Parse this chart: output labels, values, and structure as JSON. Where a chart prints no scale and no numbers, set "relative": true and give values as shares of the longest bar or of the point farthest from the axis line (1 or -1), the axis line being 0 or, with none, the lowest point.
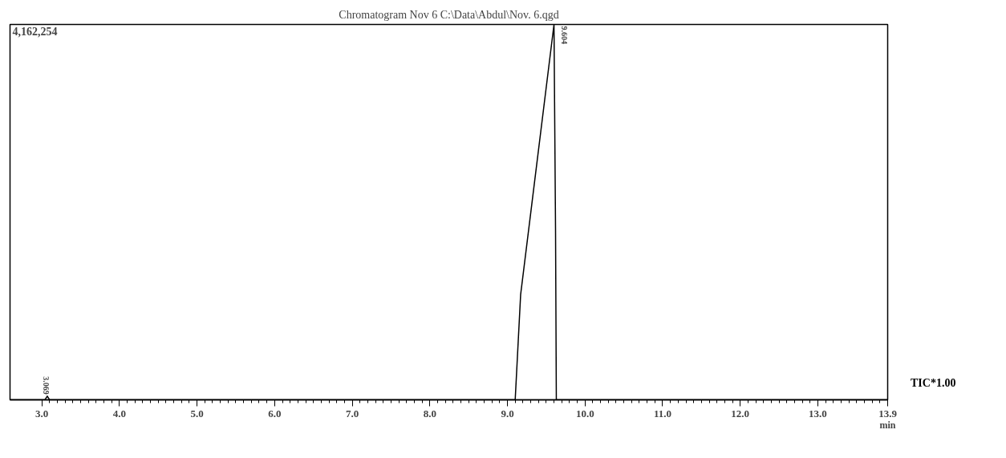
{
  "chart_data": {
    "type": "line",
    "title": "Chromatogram Nov 6 C:\\Data\\Abdul\\Nov. 6.qgd",
    "xlabel": "min",
    "relative": true,
    "color": "#000000",
    "x": [
      2.59,
      3.0,
      3.04,
      3.07,
      3.1,
      9.1,
      9.17,
      9.6,
      9.62,
      9.63,
      13.9
    ],
    "values": [
      0,
      0,
      0,
      0.01,
      0,
      0,
      0.28,
      1.0,
      0.45,
      0,
      0
    ],
    "xlim": [
      2.59,
      13.9
    ],
    "xticks": [
      {
        "value": 3.0,
        "label": "3.0"
      },
      {
        "value": 4.0,
        "label": "4.0"
      },
      {
        "value": 5.0,
        "label": "5.0"
      },
      {
        "value": 6.0,
        "label": "6.0"
      },
      {
        "value": 7.0,
        "label": "7.0"
      },
      {
        "value": 8.0,
        "label": "8.0"
      },
      {
        "value": 9.0,
        "label": "9.0"
      },
      {
        "value": 10.0,
        "label": "10.0"
      },
      {
        "value": 11.0,
        "label": "11.0"
      },
      {
        "value": 12.0,
        "label": "12.0"
      },
      {
        "value": 13.0,
        "label": "13.0"
      },
      13.9
    ],
    "tick_labels": "x",
    "grid": false,
    "annotations": [
      "4,162,254",
      "TIC*1.00",
      {
        "text": "9.604",
        "x": 9.604,
        "y": 1.0
      },
      {
        "text": "3.069",
        "x": 3.069,
        "y": 0.01
      }
    ]
  }
}
